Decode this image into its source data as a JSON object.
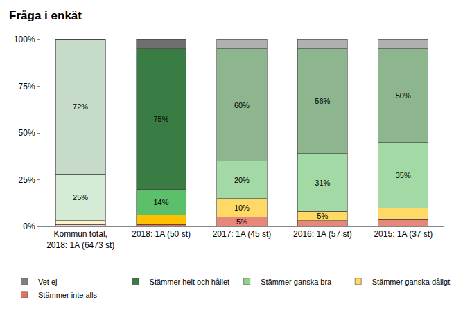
{
  "chart_data": {
    "type": "bar",
    "title": "Fråga i enkät",
    "stacked": true,
    "data_labels": true,
    "grid": false,
    "legend": "bottom",
    "categories": [
      "Kommun total, 2018: 1A (6473 st)",
      "2018: 1A (50 st)",
      "2017: 1A (45 st)",
      "2016: 1A (57 st)",
      "2015: 1A (37 st)"
    ],
    "ylim": [
      0,
      100
    ],
    "yticks": [
      {
        "value": 0,
        "label": "0%"
      },
      {
        "value": 25,
        "label": "25%"
      },
      {
        "value": 50,
        "label": "50%"
      },
      {
        "value": 75,
        "label": "75%"
      },
      {
        "value": 100,
        "label": "100%"
      }
    ],
    "series": [
      {
        "name": "Stämmer inte alls",
        "color": "#e2725b",
        "colors": [
          "#f4d3ca",
          "#e8704f",
          "#e6877a",
          "#e6877a",
          "#e6877a"
        ],
        "values": [
          1,
          1,
          5,
          3,
          4
        ],
        "value_labels": [
          null,
          null,
          "5%",
          null,
          null
        ]
      },
      {
        "name": "Stämmer ganska dåligt",
        "color": "#ffd966",
        "colors": [
          "#fff2cc",
          "#ffc000",
          "#ffd966",
          "#ffd966",
          "#ffd966"
        ],
        "values": [
          2,
          5,
          10,
          5,
          6
        ],
        "value_labels": [
          null,
          null,
          "10%",
          "5%",
          null
        ]
      },
      {
        "name": "Stämmer ganska bra",
        "color": "#92d28f",
        "colors": [
          "#d5ebd6",
          "#5cbf6a",
          "#a3d9a5",
          "#a3d9a5",
          "#a3d9a5"
        ],
        "values": [
          25,
          14,
          20,
          31,
          35
        ],
        "value_labels": [
          "25%",
          "14%",
          "20%",
          "31%",
          "35%"
        ]
      },
      {
        "name": "Stämmer helt och hållet",
        "color": "#3a7d44",
        "colors": [
          "#c7dcc8",
          "#3a7d44",
          "#8db58e",
          "#8db58e",
          "#8db58e"
        ],
        "values": [
          72,
          75,
          60,
          56,
          50
        ],
        "value_labels": [
          "72%",
          "75%",
          "60%",
          "56%",
          "50%"
        ]
      },
      {
        "name": "Vet ej",
        "color": "#7f7f7f",
        "colors": [
          "#d9d9d9",
          "#6e6e6e",
          "#b0b0b0",
          "#b0b0b0",
          "#b0b0b0"
        ],
        "values": [
          0,
          5,
          5,
          5,
          5
        ],
        "value_labels": [
          null,
          null,
          null,
          null,
          null
        ]
      }
    ]
  }
}
